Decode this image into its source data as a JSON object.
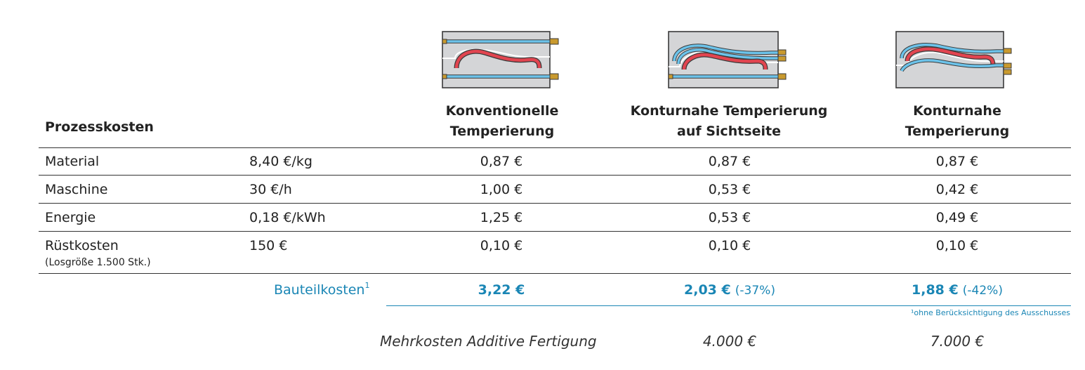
{
  "table": {
    "section_title": "Prozesskosten",
    "columns": [
      {
        "line1": "Konventionelle",
        "line2": "Temperierung",
        "icon": "conventional-cooling-mold-icon"
      },
      {
        "line1": "Konturnahe Temperierung",
        "line2": "auf Sichtseite",
        "icon": "conformal-cooling-visible-side-mold-icon"
      },
      {
        "line1": "Konturnahe",
        "line2": "Temperierung",
        "icon": "conformal-cooling-mold-icon"
      }
    ],
    "rows": [
      {
        "label": "Material",
        "sub": "",
        "rate": "8,40 €/kg",
        "values": [
          "0,87 €",
          "0,87 €",
          "0,87 €"
        ]
      },
      {
        "label": "Maschine",
        "sub": "",
        "rate": "30 €/h",
        "values": [
          "1,00 €",
          "0,53 €",
          "0,42 €"
        ]
      },
      {
        "label": "Energie",
        "sub": "",
        "rate": "0,18 €/kWh",
        "values": [
          "1,25 €",
          "0,53 €",
          "0,49 €"
        ]
      },
      {
        "label": "Rüstkosten",
        "sub": "(Losgröße 1.500 Stk.)",
        "rate": "150 €",
        "values": [
          "0,10 €",
          "0,10 €",
          "0,10 €"
        ]
      }
    ],
    "totals": {
      "label": "Bauteilkosten",
      "footnote_mark": "1",
      "values": [
        {
          "value": "3,22 €",
          "delta": ""
        },
        {
          "value": "2,03 €",
          "delta": "(-37%)"
        },
        {
          "value": "1,88 €",
          "delta": "(-42%)"
        }
      ]
    },
    "footnote": "¹ohne Berücksichtigung des Ausschusses",
    "extra_costs": {
      "label": "Mehrkosten Additive Fertigung",
      "values": [
        "",
        "4.000 €",
        "7.000 €"
      ]
    }
  },
  "colors": {
    "accent_blue": "#1a86b5",
    "channel_red": "#e0424f",
    "channel_blue": "#5bb8e6",
    "mold_gray": "#d2d3d5"
  }
}
